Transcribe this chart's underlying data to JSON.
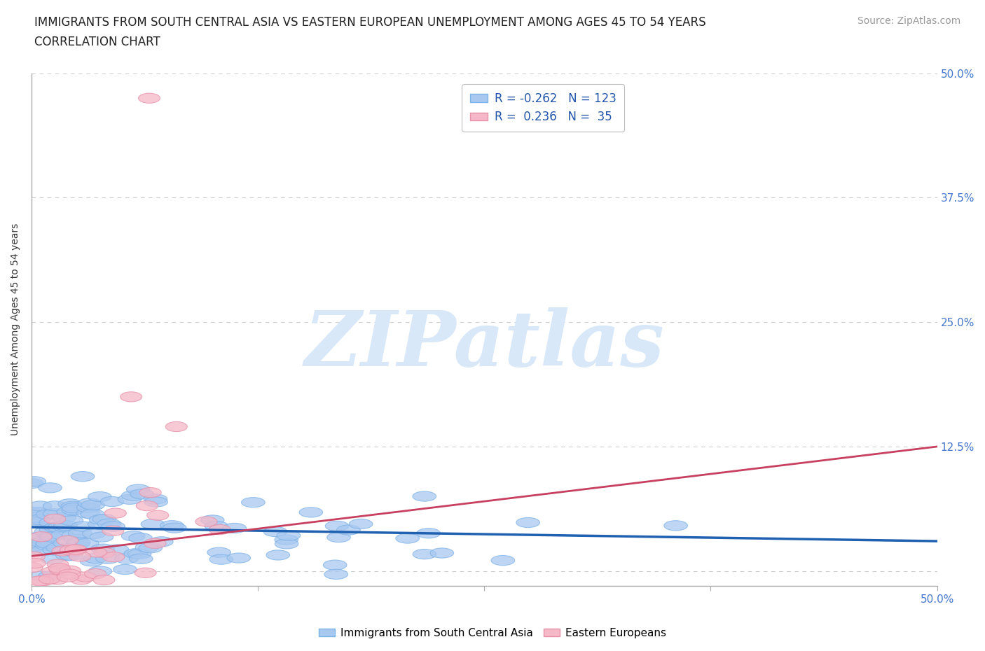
{
  "title_line1": "IMMIGRANTS FROM SOUTH CENTRAL ASIA VS EASTERN EUROPEAN UNEMPLOYMENT AMONG AGES 45 TO 54 YEARS",
  "title_line2": "CORRELATION CHART",
  "source_text": "Source: ZipAtlas.com",
  "ylabel": "Unemployment Among Ages 45 to 54 years",
  "xmin": 0.0,
  "xmax": 0.5,
  "ymin": -0.015,
  "ymax": 0.5,
  "blue_color": "#A8C8F0",
  "blue_edge_color": "#7EB3E8",
  "pink_color": "#F4B8C8",
  "pink_edge_color": "#E890A8",
  "blue_line_color": "#2060B0",
  "pink_line_color": "#C84060",
  "pink_dash_color": "#E0A0B0",
  "grid_color": "#CCCCCC",
  "background_color": "#FFFFFF",
  "watermark_text": "ZIPatlas",
  "watermark_color": "#D8E8F8",
  "legend_blue_label": "R = -0.262   N = 123",
  "legend_pink_label": "R =  0.236   N =  35",
  "blue_R": -0.262,
  "blue_N": 123,
  "pink_R": 0.236,
  "pink_N": 35,
  "legend_label_blue": "Immigrants from South Central Asia",
  "legend_label_pink": "Eastern Europeans",
  "title_fontsize": 12,
  "axis_label_fontsize": 10,
  "tick_fontsize": 11,
  "source_fontsize": 10,
  "seed": 7,
  "blue_intercept": 0.042,
  "blue_slope": -0.025,
  "pink_intercept": 0.01,
  "pink_slope": 0.24
}
